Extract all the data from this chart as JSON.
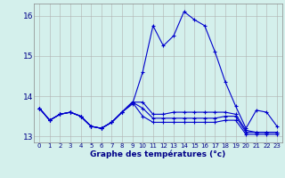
{
  "xlabel": "Graphe des températures (°c)",
  "background_color": "#d4f0ec",
  "grid_color": "#b0b0b0",
  "line_color": "#0000cc",
  "xlim": [
    -0.5,
    23.5
  ],
  "ylim": [
    12.85,
    16.3
  ],
  "yticks": [
    13,
    14,
    15,
    16
  ],
  "xticks": [
    0,
    1,
    2,
    3,
    4,
    5,
    6,
    7,
    8,
    9,
    10,
    11,
    12,
    13,
    14,
    15,
    16,
    17,
    18,
    19,
    20,
    21,
    22,
    23
  ],
  "series": [
    [
      13.7,
      13.4,
      13.55,
      13.6,
      13.5,
      13.25,
      13.2,
      13.35,
      13.6,
      13.8,
      14.6,
      15.75,
      15.25,
      15.5,
      16.1,
      15.9,
      15.75,
      15.1,
      14.35,
      13.75,
      13.2,
      13.65,
      13.6,
      13.25
    ],
    [
      13.7,
      13.4,
      13.55,
      13.6,
      13.5,
      13.25,
      13.2,
      13.35,
      13.6,
      13.85,
      13.85,
      13.55,
      13.55,
      13.6,
      13.6,
      13.6,
      13.6,
      13.6,
      13.6,
      13.55,
      13.15,
      13.1,
      13.1,
      13.1
    ],
    [
      13.7,
      13.4,
      13.55,
      13.6,
      13.5,
      13.25,
      13.2,
      13.35,
      13.6,
      13.85,
      13.7,
      13.45,
      13.45,
      13.45,
      13.45,
      13.45,
      13.45,
      13.45,
      13.5,
      13.5,
      13.1,
      13.1,
      13.1,
      13.1
    ],
    [
      13.7,
      13.4,
      13.55,
      13.6,
      13.5,
      13.25,
      13.2,
      13.35,
      13.6,
      13.85,
      13.5,
      13.35,
      13.35,
      13.35,
      13.35,
      13.35,
      13.35,
      13.35,
      13.4,
      13.4,
      13.05,
      13.05,
      13.05,
      13.05
    ]
  ]
}
